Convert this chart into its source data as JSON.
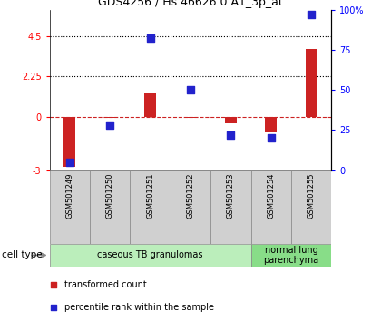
{
  "title": "GDS4256 / Hs.46626.0.A1_3p_at",
  "samples": [
    "GSM501249",
    "GSM501250",
    "GSM501251",
    "GSM501252",
    "GSM501253",
    "GSM501254",
    "GSM501255"
  ],
  "transformed_count": [
    -2.8,
    -0.05,
    1.3,
    -0.05,
    -0.35,
    -0.9,
    3.8
  ],
  "percentile_rank": [
    5,
    28,
    82,
    50,
    22,
    20,
    97
  ],
  "ylim_left": [
    -3,
    6
  ],
  "ylim_right": [
    0,
    100
  ],
  "yticks_left": [
    -3,
    0,
    2.25,
    4.5
  ],
  "ytick_labels_left": [
    "-3",
    "0",
    "2.25",
    "4.5"
  ],
  "yticks_right": [
    0,
    25,
    50,
    75,
    100
  ],
  "ytick_labels_right": [
    "0",
    "25",
    "50",
    "75",
    "100%"
  ],
  "hlines": [
    2.25,
    4.5
  ],
  "bar_color": "#cc2222",
  "dot_color": "#2222cc",
  "dashed_zero_color": "#cc2222",
  "cell_type_groups": [
    {
      "label": "caseous TB granulomas",
      "start": 0,
      "end": 5,
      "color": "#bbeebb"
    },
    {
      "label": "normal lung\nparenchyma",
      "start": 5,
      "end": 7,
      "color": "#88dd88"
    }
  ],
  "cell_type_label": "cell type",
  "legend_items": [
    {
      "color": "#cc2222",
      "label": "transformed count"
    },
    {
      "color": "#2222cc",
      "label": "percentile rank within the sample"
    }
  ],
  "bar_width": 0.3,
  "dot_size": 40
}
